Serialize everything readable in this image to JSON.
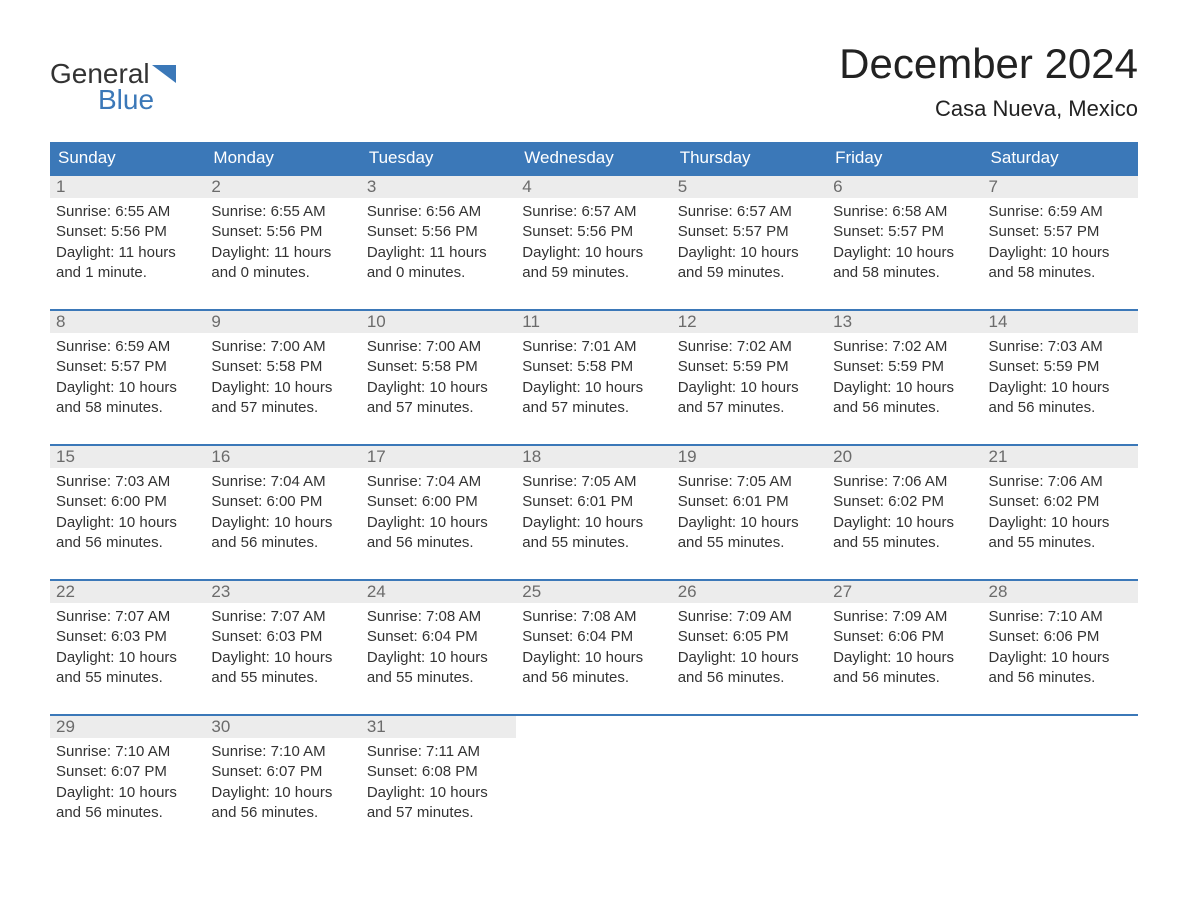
{
  "logo": {
    "text1": "General",
    "text2": "Blue",
    "accent_color": "#3b78b8"
  },
  "title": "December 2024",
  "location": "Casa Nueva, Mexico",
  "colors": {
    "header_bg": "#3b78b8",
    "header_text": "#ffffff",
    "daynum_bg": "#ececec",
    "daynum_text": "#6b6b6b",
    "body_text": "#333333",
    "row_border": "#3b78b8",
    "background": "#ffffff"
  },
  "typography": {
    "title_fontsize": 42,
    "location_fontsize": 22,
    "header_fontsize": 17,
    "daynum_fontsize": 17,
    "content_fontsize": 15,
    "font_family": "Arial"
  },
  "day_headers": [
    "Sunday",
    "Monday",
    "Tuesday",
    "Wednesday",
    "Thursday",
    "Friday",
    "Saturday"
  ],
  "weeks": [
    [
      {
        "num": "1",
        "sunrise": "6:55 AM",
        "sunset": "5:56 PM",
        "daylight": "11 hours and 1 minute."
      },
      {
        "num": "2",
        "sunrise": "6:55 AM",
        "sunset": "5:56 PM",
        "daylight": "11 hours and 0 minutes."
      },
      {
        "num": "3",
        "sunrise": "6:56 AM",
        "sunset": "5:56 PM",
        "daylight": "11 hours and 0 minutes."
      },
      {
        "num": "4",
        "sunrise": "6:57 AM",
        "sunset": "5:56 PM",
        "daylight": "10 hours and 59 minutes."
      },
      {
        "num": "5",
        "sunrise": "6:57 AM",
        "sunset": "5:57 PM",
        "daylight": "10 hours and 59 minutes."
      },
      {
        "num": "6",
        "sunrise": "6:58 AM",
        "sunset": "5:57 PM",
        "daylight": "10 hours and 58 minutes."
      },
      {
        "num": "7",
        "sunrise": "6:59 AM",
        "sunset": "5:57 PM",
        "daylight": "10 hours and 58 minutes."
      }
    ],
    [
      {
        "num": "8",
        "sunrise": "6:59 AM",
        "sunset": "5:57 PM",
        "daylight": "10 hours and 58 minutes."
      },
      {
        "num": "9",
        "sunrise": "7:00 AM",
        "sunset": "5:58 PM",
        "daylight": "10 hours and 57 minutes."
      },
      {
        "num": "10",
        "sunrise": "7:00 AM",
        "sunset": "5:58 PM",
        "daylight": "10 hours and 57 minutes."
      },
      {
        "num": "11",
        "sunrise": "7:01 AM",
        "sunset": "5:58 PM",
        "daylight": "10 hours and 57 minutes."
      },
      {
        "num": "12",
        "sunrise": "7:02 AM",
        "sunset": "5:59 PM",
        "daylight": "10 hours and 57 minutes."
      },
      {
        "num": "13",
        "sunrise": "7:02 AM",
        "sunset": "5:59 PM",
        "daylight": "10 hours and 56 minutes."
      },
      {
        "num": "14",
        "sunrise": "7:03 AM",
        "sunset": "5:59 PM",
        "daylight": "10 hours and 56 minutes."
      }
    ],
    [
      {
        "num": "15",
        "sunrise": "7:03 AM",
        "sunset": "6:00 PM",
        "daylight": "10 hours and 56 minutes."
      },
      {
        "num": "16",
        "sunrise": "7:04 AM",
        "sunset": "6:00 PM",
        "daylight": "10 hours and 56 minutes."
      },
      {
        "num": "17",
        "sunrise": "7:04 AM",
        "sunset": "6:00 PM",
        "daylight": "10 hours and 56 minutes."
      },
      {
        "num": "18",
        "sunrise": "7:05 AM",
        "sunset": "6:01 PM",
        "daylight": "10 hours and 55 minutes."
      },
      {
        "num": "19",
        "sunrise": "7:05 AM",
        "sunset": "6:01 PM",
        "daylight": "10 hours and 55 minutes."
      },
      {
        "num": "20",
        "sunrise": "7:06 AM",
        "sunset": "6:02 PM",
        "daylight": "10 hours and 55 minutes."
      },
      {
        "num": "21",
        "sunrise": "7:06 AM",
        "sunset": "6:02 PM",
        "daylight": "10 hours and 55 minutes."
      }
    ],
    [
      {
        "num": "22",
        "sunrise": "7:07 AM",
        "sunset": "6:03 PM",
        "daylight": "10 hours and 55 minutes."
      },
      {
        "num": "23",
        "sunrise": "7:07 AM",
        "sunset": "6:03 PM",
        "daylight": "10 hours and 55 minutes."
      },
      {
        "num": "24",
        "sunrise": "7:08 AM",
        "sunset": "6:04 PM",
        "daylight": "10 hours and 55 minutes."
      },
      {
        "num": "25",
        "sunrise": "7:08 AM",
        "sunset": "6:04 PM",
        "daylight": "10 hours and 56 minutes."
      },
      {
        "num": "26",
        "sunrise": "7:09 AM",
        "sunset": "6:05 PM",
        "daylight": "10 hours and 56 minutes."
      },
      {
        "num": "27",
        "sunrise": "7:09 AM",
        "sunset": "6:06 PM",
        "daylight": "10 hours and 56 minutes."
      },
      {
        "num": "28",
        "sunrise": "7:10 AM",
        "sunset": "6:06 PM",
        "daylight": "10 hours and 56 minutes."
      }
    ],
    [
      {
        "num": "29",
        "sunrise": "7:10 AM",
        "sunset": "6:07 PM",
        "daylight": "10 hours and 56 minutes."
      },
      {
        "num": "30",
        "sunrise": "7:10 AM",
        "sunset": "6:07 PM",
        "daylight": "10 hours and 56 minutes."
      },
      {
        "num": "31",
        "sunrise": "7:11 AM",
        "sunset": "6:08 PM",
        "daylight": "10 hours and 57 minutes."
      },
      {
        "empty": true
      },
      {
        "empty": true
      },
      {
        "empty": true
      },
      {
        "empty": true
      }
    ]
  ],
  "labels": {
    "sunrise": "Sunrise:",
    "sunset": "Sunset:",
    "daylight": "Daylight:"
  }
}
